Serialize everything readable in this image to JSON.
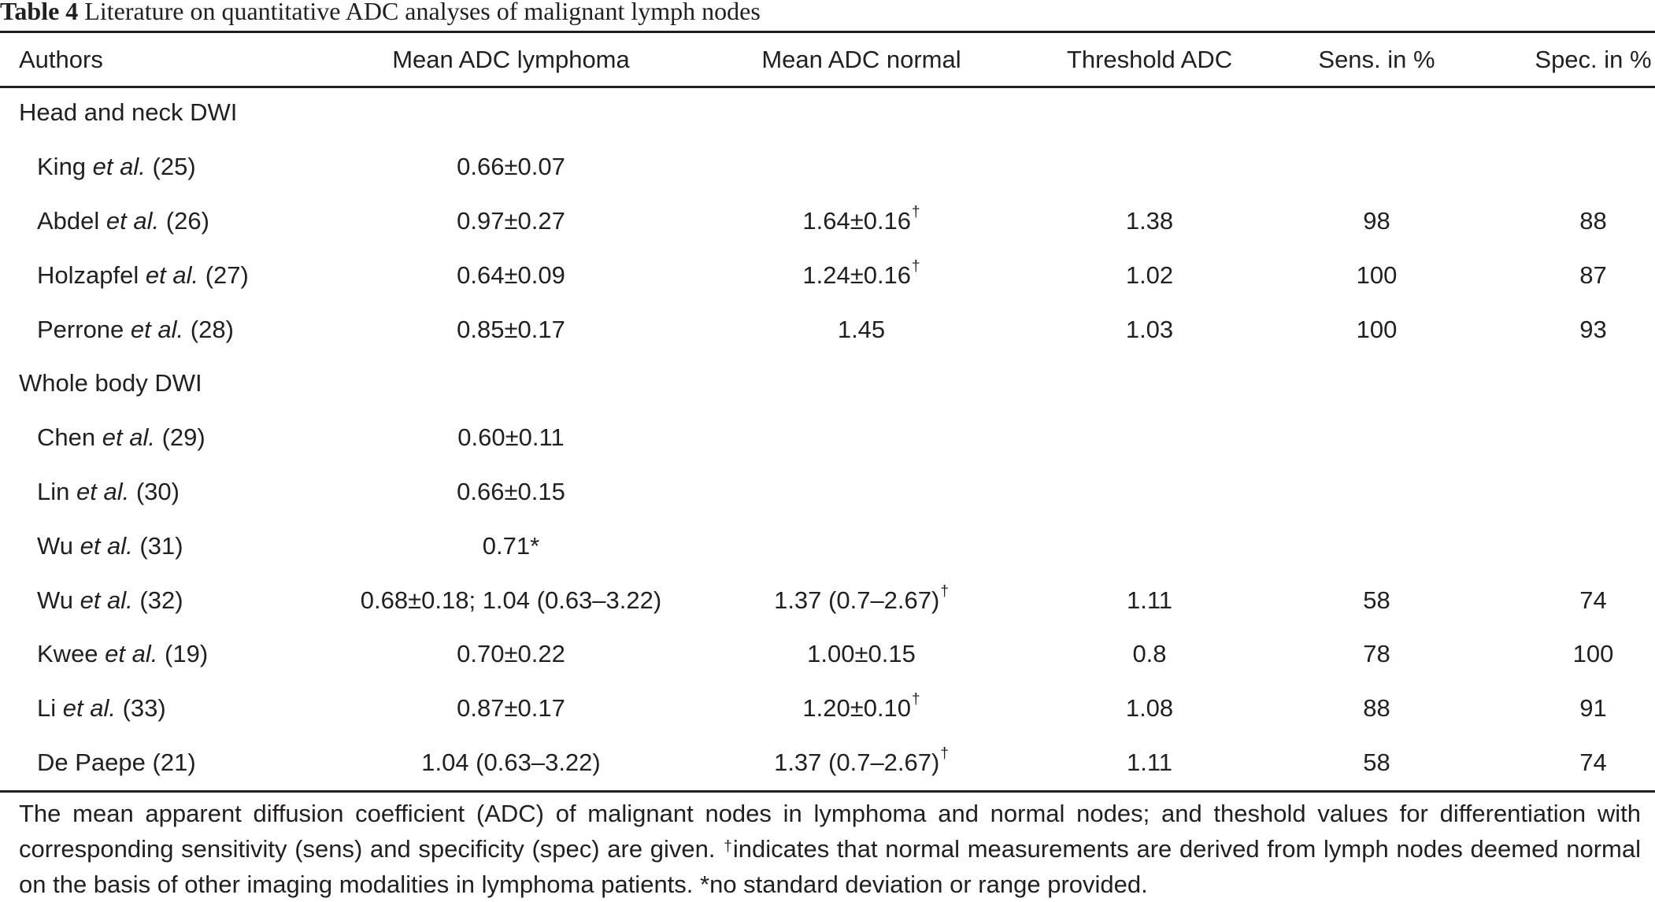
{
  "caption": {
    "label": "Table 4",
    "text": "Literature on quantitative ADC analyses of malignant lymph nodes"
  },
  "columns": [
    "Authors",
    "Mean ADC lymphoma",
    "Mean ADC normal",
    "Threshold ADC",
    "Sens. in %",
    "Spec. in %"
  ],
  "sections": [
    {
      "title": "Head and neck DWI",
      "rows": [
        {
          "author": "King",
          "etal": true,
          "ref": "(25)",
          "lymphoma": "0.66±0.07",
          "normal": "",
          "normal_dagger": false,
          "threshold": "",
          "sens": "",
          "spec": ""
        },
        {
          "author": "Abdel",
          "etal": true,
          "ref": "(26)",
          "lymphoma": "0.97±0.27",
          "normal": "1.64±0.16",
          "normal_dagger": true,
          "threshold": "1.38",
          "sens": "98",
          "spec": "88"
        },
        {
          "author": "Holzapfel",
          "etal": true,
          "ref": "(27)",
          "lymphoma": "0.64±0.09",
          "normal": "1.24±0.16",
          "normal_dagger": true,
          "threshold": "1.02",
          "sens": "100",
          "spec": "87"
        },
        {
          "author": "Perrone",
          "etal": true,
          "ref": "(28)",
          "lymphoma": "0.85±0.17",
          "normal": "1.45",
          "normal_dagger": false,
          "threshold": "1.03",
          "sens": "100",
          "spec": "93"
        }
      ]
    },
    {
      "title": "Whole body DWI",
      "rows": [
        {
          "author": "Chen",
          "etal": true,
          "ref": "(29)",
          "lymphoma": "0.60±0.11",
          "normal": "",
          "normal_dagger": false,
          "threshold": "",
          "sens": "",
          "spec": ""
        },
        {
          "author": "Lin",
          "etal": true,
          "ref": "(30)",
          "lymphoma": "0.66±0.15",
          "normal": "",
          "normal_dagger": false,
          "threshold": "",
          "sens": "",
          "spec": ""
        },
        {
          "author": "Wu",
          "etal": true,
          "ref": "(31)",
          "lymphoma": "0.71*",
          "normal": "",
          "normal_dagger": false,
          "threshold": "",
          "sens": "",
          "spec": ""
        },
        {
          "author": "Wu",
          "etal": true,
          "ref": "(32)",
          "lymphoma": "0.68±0.18; 1.04 (0.63–3.22)",
          "normal": "1.37 (0.7–2.67)",
          "normal_dagger": true,
          "threshold": "1.11",
          "sens": "58",
          "spec": "74"
        },
        {
          "author": "Kwee",
          "etal": true,
          "ref": "(19)",
          "lymphoma": "0.70±0.22",
          "normal": "1.00±0.15",
          "normal_dagger": false,
          "threshold": "0.8",
          "sens": "78",
          "spec": "100"
        },
        {
          "author": "Li",
          "etal": true,
          "ref": "(33)",
          "lymphoma": "0.87±0.17",
          "normal": "1.20±0.10",
          "normal_dagger": true,
          "threshold": "1.08",
          "sens": "88",
          "spec": "91"
        },
        {
          "author": "De Paepe",
          "etal": false,
          "ref": "(21)",
          "lymphoma": "1.04 (0.63–3.22)",
          "normal": "1.37 (0.7–2.67)",
          "normal_dagger": true,
          "threshold": "1.11",
          "sens": "58",
          "spec": "74"
        }
      ]
    }
  ],
  "symbols": {
    "etal": "et al.",
    "dagger": "†"
  },
  "footnote": {
    "part1": "The mean apparent diffusion coefficient (ADC) of malignant nodes in lymphoma and normal nodes; and theshold values for differentiation with corresponding sensitivity (sens) and specificity (spec) are given. ",
    "dagger": "†",
    "part2": "indicates that normal measurements are derived from lymph nodes deemed normal on the basis of other imaging modalities in lymphoma patients. *no standard deviation or range provided."
  }
}
